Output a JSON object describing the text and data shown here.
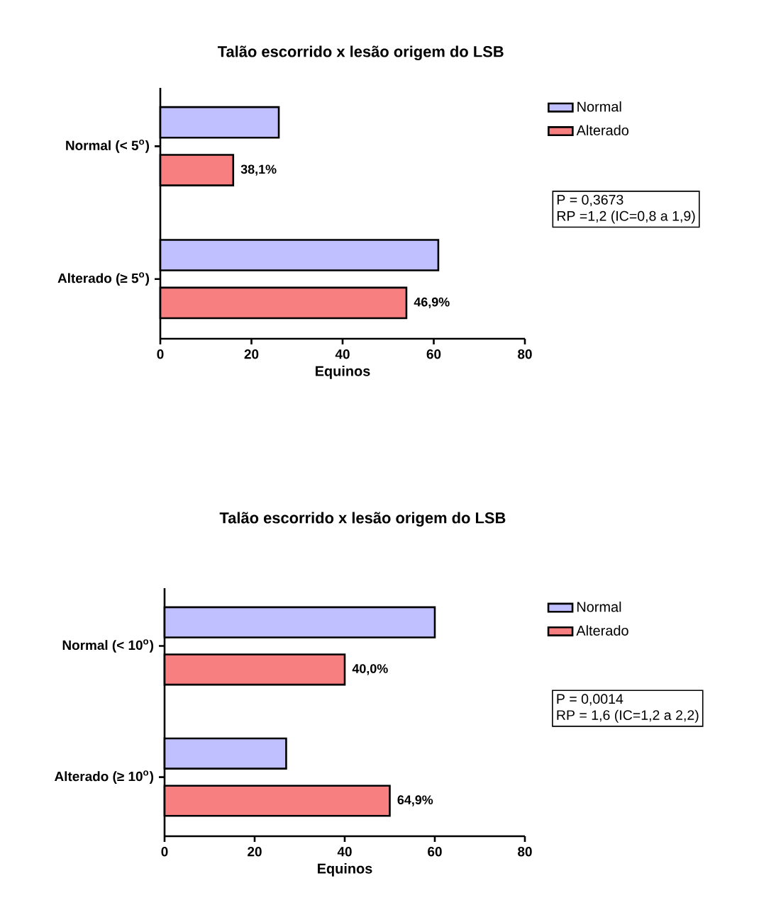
{
  "chart_data": [
    {
      "type": "bar",
      "orientation": "horizontal",
      "title": "Talão escorrido x lesão origem do LSB",
      "xlabel": "Equinos",
      "categories": [
        "Normal (< 5$^{o}$)",
        "Alterado (≥ 5$^{o}$)"
      ],
      "series": [
        {
          "name": "Normal",
          "color": "#c0bfff",
          "values": [
            26,
            61
          ]
        },
        {
          "name": "Alterado",
          "color": "#f77f7f",
          "values": [
            16,
            54
          ]
        }
      ],
      "xlim": [
        0,
        80
      ],
      "xticks": [
        0,
        20,
        40,
        60,
        80
      ],
      "legend": "top right",
      "grid": false,
      "annotations": [
        "38,1%",
        "46,9%",
        "P = 0,3673",
        "RP =1,2 (IC=0,8 a 1,9)"
      ]
    },
    {
      "type": "bar",
      "orientation": "horizontal",
      "title": "Talão escorrido x lesão origem do LSB",
      "xlabel": "Equinos",
      "categories": [
        "Normal (< 10$^{o}$)",
        "Alterado (≥ 10$^{o}$)"
      ],
      "series": [
        {
          "name": "Normal",
          "color": "#c0bfff",
          "values": [
            60,
            27
          ]
        },
        {
          "name": "Alterado",
          "color": "#f77f7f",
          "values": [
            40,
            50
          ]
        }
      ],
      "xlim": [
        0,
        80
      ],
      "xticks": [
        0,
        20,
        40,
        60,
        80
      ],
      "legend": "top right",
      "grid": false,
      "annotations": [
        "40,0%",
        "64,9%",
        "P = 0,0014",
        "RP = 1,6 (IC=1,2 a 2,2)"
      ]
    }
  ]
}
